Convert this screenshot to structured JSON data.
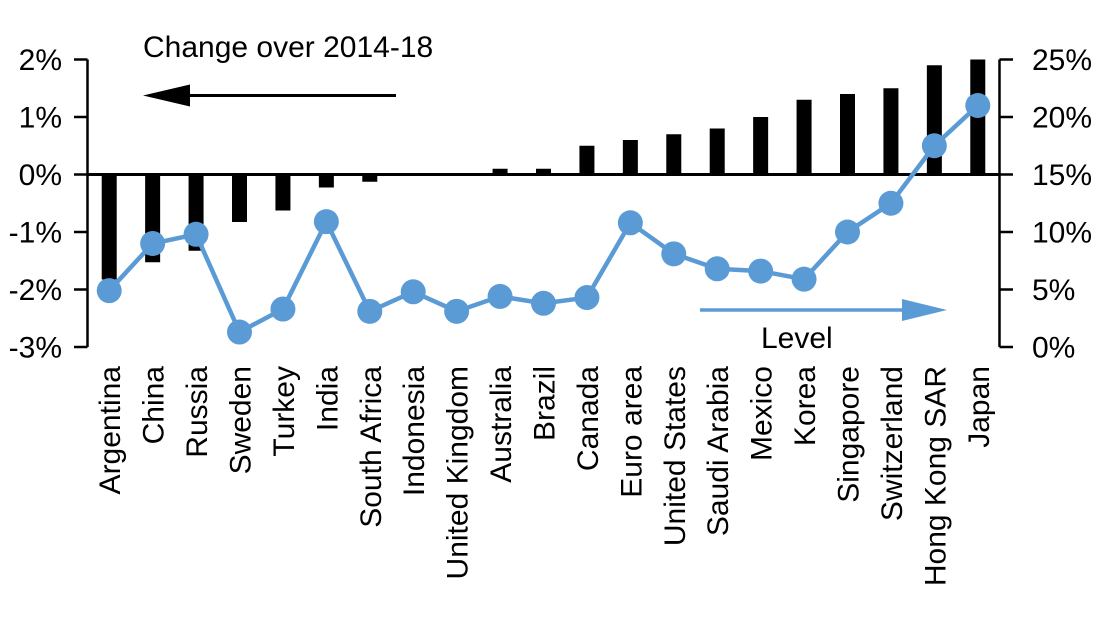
{
  "chart_data": {
    "type": "bar",
    "subtype": "dual-axis bar + line combo",
    "categories": [
      "Argentina",
      "China",
      "Russia",
      "Sweden",
      "Turkey",
      "India",
      "South Africa",
      "Indonesia",
      "United Kingdom",
      "Australia",
      "Brazil",
      "Canada",
      "Euro area",
      "United States",
      "Saudi Arabia",
      "Mexico",
      "Korea",
      "Singapore",
      "Switzerland",
      "Hong Kong SAR",
      "Japan"
    ],
    "series": [
      {
        "name": "Change over 2014-18",
        "type": "bar",
        "axis": "left",
        "values": [
          -1.8,
          -1.5,
          -1.3,
          -0.8,
          -0.6,
          -0.2,
          -0.1,
          0.0,
          0.0,
          0.1,
          0.1,
          0.5,
          0.6,
          0.7,
          0.8,
          1.0,
          1.3,
          1.4,
          1.5,
          1.9,
          2.0
        ]
      },
      {
        "name": "Level",
        "type": "line",
        "axis": "right",
        "values": [
          4.9,
          9.0,
          9.8,
          1.3,
          3.3,
          10.9,
          3.1,
          4.8,
          3.1,
          4.4,
          3.8,
          4.3,
          10.8,
          8.1,
          6.8,
          6.6,
          5.9,
          10.0,
          12.5,
          17.5,
          21.0
        ]
      }
    ],
    "left_axis": {
      "tick_labels": [
        "2%",
        "1%",
        "0%",
        "-1%",
        "-2%",
        "-3%"
      ],
      "tick_values": [
        2,
        1,
        0,
        -1,
        -2,
        -3
      ],
      "ylim": [
        -3,
        2
      ]
    },
    "right_axis": {
      "tick_labels": [
        "25%",
        "20%",
        "15%",
        "10%",
        "5%",
        "0%"
      ],
      "tick_values": [
        25,
        20,
        15,
        10,
        5,
        0
      ],
      "ylim": [
        0,
        25
      ]
    },
    "annotations": {
      "change_label": "Change over 2014-18",
      "level_label": "Level",
      "change_arrow_direction": "left",
      "level_arrow_direction": "right"
    },
    "colors": {
      "bar": "#000000",
      "line": "#5B9BD5",
      "axis": "#000000"
    },
    "grid": "off",
    "legend_position": "arrows inside plot: black left-arrow top-left, blue right-arrow bottom-right"
  }
}
